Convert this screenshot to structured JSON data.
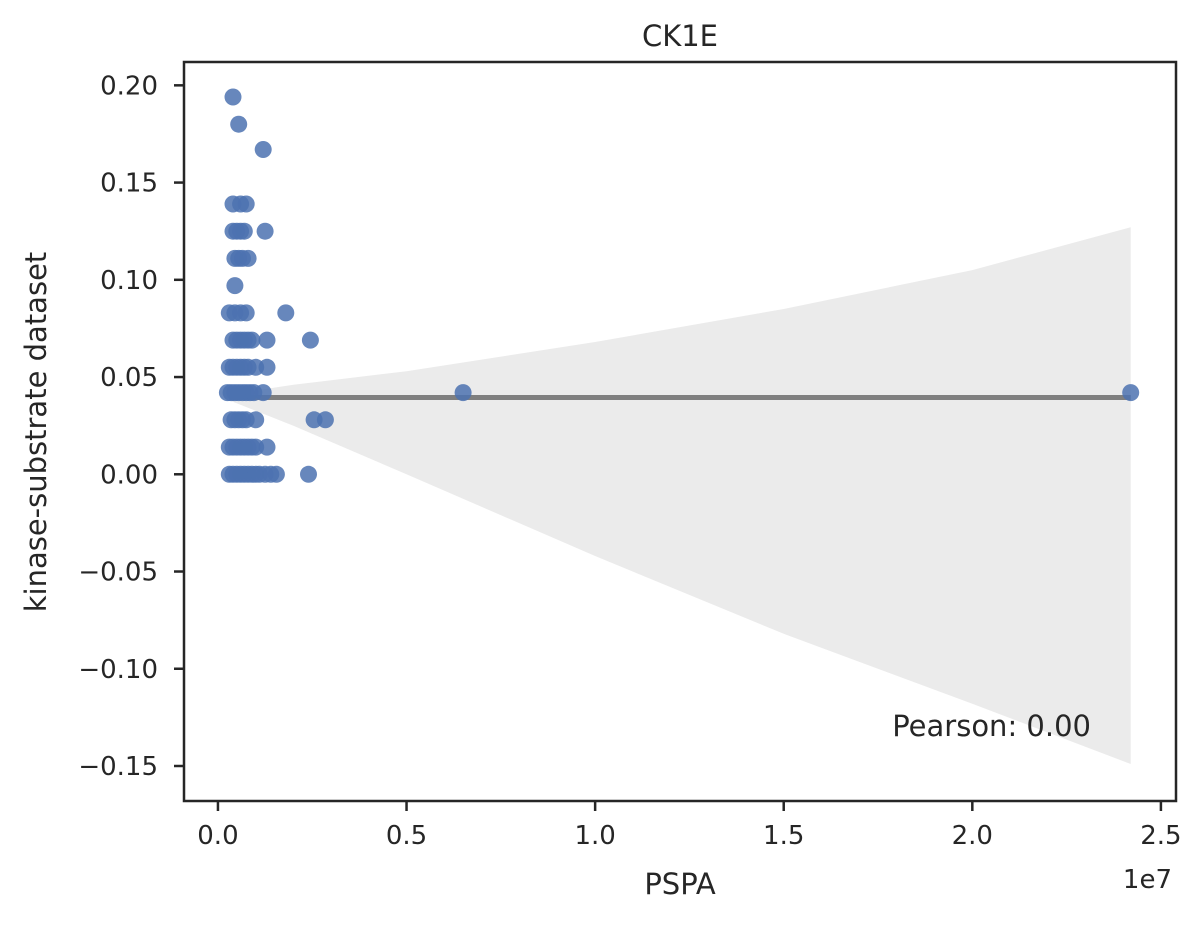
{
  "colors": {
    "points": "#4c72b0",
    "fit_line": "#7f7f7f",
    "ci_band": "#ebebeb",
    "axes": "#262626"
  },
  "chart_data": {
    "type": "scatter",
    "title": "CK1E",
    "xlabel": "PSPA",
    "ylabel": "kinase-substrate dataset",
    "x_offset_label": "1e7",
    "annotation": "Pearson: 0.00",
    "xlim": [
      -0.09,
      2.54
    ],
    "ylim": [
      -0.168,
      0.212
    ],
    "x_ticks": [
      0.0,
      0.5,
      1.0,
      1.5,
      2.0,
      2.5
    ],
    "x_tick_labels": [
      "0.0",
      "0.5",
      "1.0",
      "1.5",
      "2.0",
      "2.5"
    ],
    "y_ticks": [
      0.2,
      0.15,
      0.1,
      0.05,
      0.0,
      -0.05,
      -0.1,
      -0.15
    ],
    "y_tick_labels": [
      "0.20",
      "0.15",
      "0.10",
      "0.05",
      "0.00",
      "−0.05",
      "−0.10",
      "−0.15"
    ],
    "grid": false,
    "legend": "none",
    "x_unit_note": "x values in units of 1e7",
    "points": [
      {
        "x": 0.04,
        "y": 0.194
      },
      {
        "x": 0.055,
        "y": 0.18
      },
      {
        "x": 0.12,
        "y": 0.167
      },
      {
        "x": 0.04,
        "y": 0.139
      },
      {
        "x": 0.06,
        "y": 0.139
      },
      {
        "x": 0.075,
        "y": 0.139
      },
      {
        "x": 0.04,
        "y": 0.125
      },
      {
        "x": 0.05,
        "y": 0.125
      },
      {
        "x": 0.06,
        "y": 0.125
      },
      {
        "x": 0.07,
        "y": 0.125
      },
      {
        "x": 0.125,
        "y": 0.125
      },
      {
        "x": 0.045,
        "y": 0.111
      },
      {
        "x": 0.055,
        "y": 0.111
      },
      {
        "x": 0.065,
        "y": 0.111
      },
      {
        "x": 0.08,
        "y": 0.111
      },
      {
        "x": 0.045,
        "y": 0.097
      },
      {
        "x": 0.03,
        "y": 0.083
      },
      {
        "x": 0.045,
        "y": 0.083
      },
      {
        "x": 0.06,
        "y": 0.083
      },
      {
        "x": 0.075,
        "y": 0.083
      },
      {
        "x": 0.18,
        "y": 0.083
      },
      {
        "x": 0.04,
        "y": 0.069
      },
      {
        "x": 0.05,
        "y": 0.069
      },
      {
        "x": 0.06,
        "y": 0.069
      },
      {
        "x": 0.07,
        "y": 0.069
      },
      {
        "x": 0.08,
        "y": 0.069
      },
      {
        "x": 0.09,
        "y": 0.069
      },
      {
        "x": 0.13,
        "y": 0.069
      },
      {
        "x": 0.245,
        "y": 0.069
      },
      {
        "x": 0.03,
        "y": 0.055
      },
      {
        "x": 0.04,
        "y": 0.055
      },
      {
        "x": 0.05,
        "y": 0.055
      },
      {
        "x": 0.06,
        "y": 0.055
      },
      {
        "x": 0.07,
        "y": 0.055
      },
      {
        "x": 0.08,
        "y": 0.055
      },
      {
        "x": 0.1,
        "y": 0.055
      },
      {
        "x": 0.13,
        "y": 0.055
      },
      {
        "x": 0.025,
        "y": 0.042
      },
      {
        "x": 0.035,
        "y": 0.042
      },
      {
        "x": 0.045,
        "y": 0.042
      },
      {
        "x": 0.055,
        "y": 0.042
      },
      {
        "x": 0.065,
        "y": 0.042
      },
      {
        "x": 0.075,
        "y": 0.042
      },
      {
        "x": 0.085,
        "y": 0.042
      },
      {
        "x": 0.095,
        "y": 0.042
      },
      {
        "x": 0.12,
        "y": 0.042
      },
      {
        "x": 0.65,
        "y": 0.042
      },
      {
        "x": 2.42,
        "y": 0.042
      },
      {
        "x": 0.035,
        "y": 0.028
      },
      {
        "x": 0.045,
        "y": 0.028
      },
      {
        "x": 0.055,
        "y": 0.028
      },
      {
        "x": 0.065,
        "y": 0.028
      },
      {
        "x": 0.075,
        "y": 0.028
      },
      {
        "x": 0.1,
        "y": 0.028
      },
      {
        "x": 0.255,
        "y": 0.028
      },
      {
        "x": 0.285,
        "y": 0.028
      },
      {
        "x": 0.03,
        "y": 0.014
      },
      {
        "x": 0.04,
        "y": 0.014
      },
      {
        "x": 0.05,
        "y": 0.014
      },
      {
        "x": 0.06,
        "y": 0.014
      },
      {
        "x": 0.07,
        "y": 0.014
      },
      {
        "x": 0.08,
        "y": 0.014
      },
      {
        "x": 0.09,
        "y": 0.014
      },
      {
        "x": 0.1,
        "y": 0.014
      },
      {
        "x": 0.13,
        "y": 0.014
      },
      {
        "x": 0.03,
        "y": 0.0
      },
      {
        "x": 0.04,
        "y": 0.0
      },
      {
        "x": 0.05,
        "y": 0.0
      },
      {
        "x": 0.06,
        "y": 0.0
      },
      {
        "x": 0.07,
        "y": 0.0
      },
      {
        "x": 0.08,
        "y": 0.0
      },
      {
        "x": 0.09,
        "y": 0.0
      },
      {
        "x": 0.1,
        "y": 0.0
      },
      {
        "x": 0.11,
        "y": 0.0
      },
      {
        "x": 0.125,
        "y": 0.0
      },
      {
        "x": 0.14,
        "y": 0.0
      },
      {
        "x": 0.155,
        "y": 0.0
      },
      {
        "x": 0.24,
        "y": 0.0
      }
    ],
    "fit_line": {
      "x": [
        0.03,
        2.42
      ],
      "y": [
        0.0395,
        0.0395
      ]
    },
    "ci_band": {
      "x": [
        0.03,
        0.2,
        0.5,
        1.0,
        1.5,
        2.0,
        2.42
      ],
      "upper": [
        0.041,
        0.046,
        0.053,
        0.068,
        0.085,
        0.105,
        0.127
      ],
      "lower": [
        0.038,
        0.025,
        0.0,
        -0.042,
        -0.082,
        -0.118,
        -0.149
      ]
    }
  }
}
